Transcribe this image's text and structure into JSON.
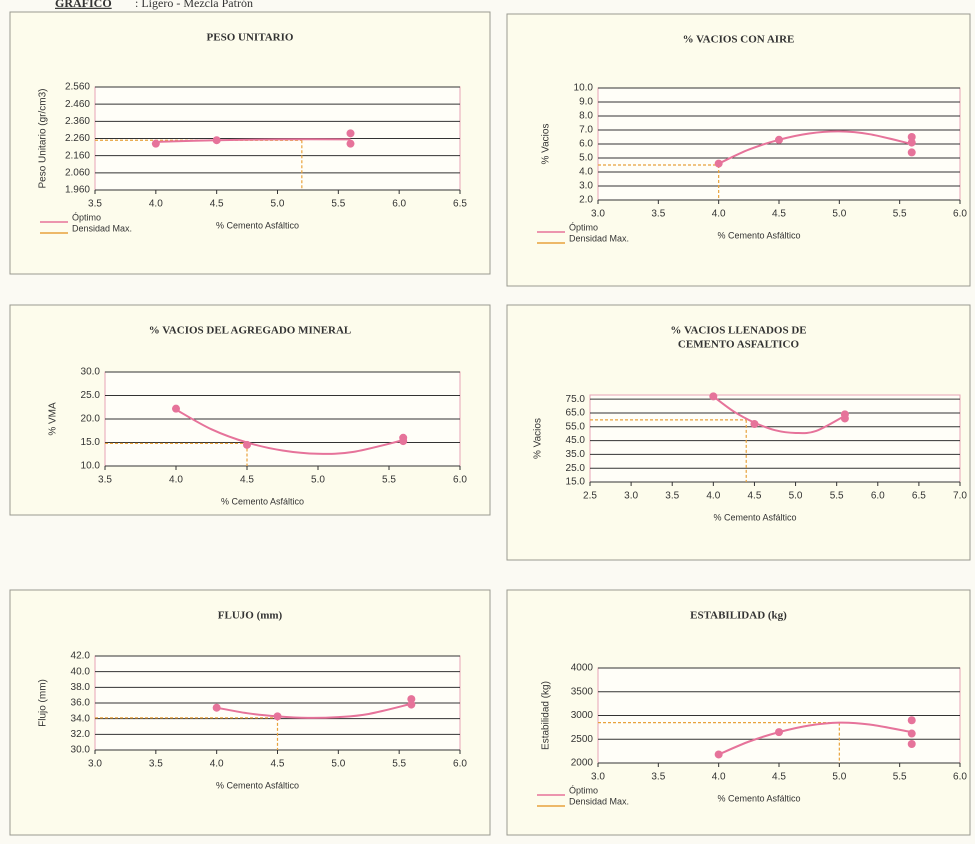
{
  "header": {
    "title": "GRAFICO",
    "subtitle": ": Ligero - Mezcla Patrón"
  },
  "chart_data": [
    {
      "type": "scatter",
      "title": [
        "PESO UNITARIO"
      ],
      "ylabel": "Peso Unitario (gr/cm3)",
      "xlabel": "% Cemento Asfáltico",
      "xlim": [
        3.5,
        6.5
      ],
      "xticks": [
        3.5,
        {
          "value": 4,
          "label": "4.0"
        },
        4.5,
        {
          "value": 5,
          "label": "5.0"
        },
        5.5,
        {
          "value": 6,
          "label": "6.0"
        },
        6.5
      ],
      "ylim": [
        1.96,
        2.56
      ],
      "yticks": [
        {
          "value": 1.96,
          "label": "1.960"
        },
        {
          "value": 2.06,
          "label": "2.060"
        },
        {
          "value": 2.16,
          "label": "2.160"
        },
        {
          "value": 2.26,
          "label": "2.260"
        },
        {
          "value": 2.36,
          "label": "2.360"
        },
        {
          "value": 2.46,
          "label": "2.460"
        },
        {
          "value": 2.56,
          "label": "2.560"
        }
      ],
      "points": {
        "x": [
          4.0,
          4.5,
          5.6,
          5.6
        ],
        "y": [
          2.23,
          2.25,
          2.29,
          2.23
        ]
      },
      "curve": {
        "x": [
          4.0,
          4.5,
          5.0,
          5.6
        ],
        "y": [
          2.24,
          2.25,
          2.255,
          2.255
        ]
      },
      "optimum": {
        "x": 5.2,
        "y": 2.25
      },
      "color": "#e6739a",
      "optimum_color": "#e8a23c",
      "legend": [
        {
          "label": "Óptimo",
          "color": "#e6739a"
        },
        {
          "label": "Densidad Max.",
          "color": "#e8a23c"
        }
      ]
    },
    {
      "type": "scatter",
      "title": [
        "% VACIOS CON AIRE"
      ],
      "ylabel": "% Vacios",
      "xlabel": "% Cemento Asfáltico",
      "xlim": [
        3,
        6
      ],
      "xticks": [
        {
          "value": 3,
          "label": "3.0"
        },
        3.5,
        {
          "value": 4,
          "label": "4.0"
        },
        4.5,
        {
          "value": 5,
          "label": "5.0"
        },
        5.5,
        {
          "value": 6,
          "label": "6.0"
        }
      ],
      "ylim": [
        2,
        10
      ],
      "yticks": [
        {
          "value": 2,
          "label": "2.0"
        },
        {
          "value": 3,
          "label": "3.0"
        },
        {
          "value": 4,
          "label": "4.0"
        },
        {
          "value": 5,
          "label": "5.0"
        },
        {
          "value": 6,
          "label": "6.0"
        },
        {
          "value": 7,
          "label": "7.0"
        },
        {
          "value": 8,
          "label": "8.0"
        },
        {
          "value": 9,
          "label": "9.0"
        },
        {
          "value": 10,
          "label": "10.0"
        }
      ],
      "points": {
        "x": [
          4.0,
          4.5,
          5.6,
          5.6,
          5.6
        ],
        "y": [
          4.6,
          6.3,
          6.5,
          6.1,
          5.4
        ]
      },
      "curve": {
        "x": [
          4.0,
          4.25,
          4.5,
          4.75,
          5.0,
          5.25,
          5.6
        ],
        "y": [
          4.6,
          5.6,
          6.3,
          6.75,
          6.9,
          6.7,
          6.0
        ]
      },
      "optimum": {
        "x": 4.0,
        "y": 4.5
      },
      "color": "#e6739a",
      "optimum_color": "#e8a23c",
      "legend": [
        {
          "label": "Óptimo",
          "color": "#e6739a"
        },
        {
          "label": "Densidad Max.",
          "color": "#e8a23c"
        }
      ]
    },
    {
      "type": "scatter",
      "title": [
        "% VACIOS DEL AGREGADO MINERAL"
      ],
      "ylabel": "% VMA",
      "xlabel": "% Cemento Asfáltico",
      "xlim": [
        3.5,
        6
      ],
      "xticks": [
        3.5,
        {
          "value": 4,
          "label": "4.0"
        },
        4.5,
        {
          "value": 5,
          "label": "5.0"
        },
        5.5,
        {
          "value": 6,
          "label": "6.0"
        }
      ],
      "ylim": [
        10,
        30
      ],
      "yticks": [
        {
          "value": 10,
          "label": "10.0"
        },
        {
          "value": 15,
          "label": "15.0"
        },
        {
          "value": 20,
          "label": "20.0"
        },
        {
          "value": 25,
          "label": "25.0"
        },
        {
          "value": 30,
          "label": "30.0"
        }
      ],
      "points": {
        "x": [
          4.0,
          4.5,
          5.6,
          5.6
        ],
        "y": [
          22.2,
          14.5,
          16.0,
          15.3
        ]
      },
      "curve": {
        "x": [
          4.0,
          4.25,
          4.5,
          4.75,
          5.0,
          5.25,
          5.6
        ],
        "y": [
          22.0,
          17.8,
          15.0,
          13.3,
          12.6,
          13.0,
          15.5
        ]
      },
      "optimum": {
        "x": 4.5,
        "y": 14.8
      },
      "color": "#e6739a",
      "optimum_color": "#e8a23c"
    },
    {
      "type": "scatter",
      "title": [
        "% VACIOS LLENADOS DE",
        "CEMENTO ASFALTICO"
      ],
      "ylabel": "% Vacios",
      "xlabel": "% Cemento Asfáltico",
      "xlim": [
        2.5,
        7
      ],
      "xticks": [
        2.5,
        {
          "value": 3,
          "label": "3.0"
        },
        3.5,
        {
          "value": 4,
          "label": "4.0"
        },
        4.5,
        {
          "value": 5,
          "label": "5.0"
        },
        5.5,
        {
          "value": 6,
          "label": "6.0"
        },
        6.5,
        {
          "value": 7,
          "label": "7.0"
        }
      ],
      "ylim": [
        15,
        78
      ],
      "yticks": [
        {
          "value": 15,
          "label": "15.0"
        },
        {
          "value": 25,
          "label": "25.0"
        },
        {
          "value": 35,
          "label": "35.0"
        },
        {
          "value": 45,
          "label": "45.0"
        },
        {
          "value": 55,
          "label": "55.0"
        },
        {
          "value": 65,
          "label": "65.0"
        },
        {
          "value": 75,
          "label": "75.0"
        }
      ],
      "points": {
        "x": [
          4.0,
          4.5,
          5.6,
          5.6
        ],
        "y": [
          77,
          57,
          64,
          61
        ]
      },
      "curve": {
        "x": [
          4.0,
          4.25,
          4.5,
          4.75,
          5.0,
          5.25,
          5.6
        ],
        "y": [
          77,
          66,
          58,
          52.5,
          50.5,
          52,
          63
        ]
      },
      "optimum": {
        "x": 4.4,
        "y": 60
      },
      "color": "#e6739a",
      "optimum_color": "#e8a23c"
    },
    {
      "type": "scatter",
      "title": [
        "FLUJO (mm)"
      ],
      "ylabel": "Flujo (mm)",
      "xlabel": "% Cemento Asfáltico",
      "xlim": [
        3,
        6
      ],
      "xticks": [
        {
          "value": 3,
          "label": "3.0"
        },
        3.5,
        {
          "value": 4,
          "label": "4.0"
        },
        4.5,
        {
          "value": 5,
          "label": "5.0"
        },
        5.5,
        {
          "value": 6,
          "label": "6.0"
        }
      ],
      "ylim": [
        30,
        42
      ],
      "yticks": [
        {
          "value": 30,
          "label": "30.0"
        },
        {
          "value": 32,
          "label": "32.0"
        },
        {
          "value": 34,
          "label": "34.0"
        },
        {
          "value": 36,
          "label": "36.0"
        },
        {
          "value": 38,
          "label": "38.0"
        },
        {
          "value": 40,
          "label": "40.0"
        },
        {
          "value": 42,
          "label": "42.0"
        }
      ],
      "points": {
        "x": [
          4.0,
          4.5,
          5.6,
          5.6
        ],
        "y": [
          35.4,
          34.3,
          36.5,
          35.8
        ]
      },
      "curve": {
        "x": [
          4.0,
          4.25,
          4.5,
          4.75,
          5.0,
          5.25,
          5.6
        ],
        "y": [
          35.4,
          34.7,
          34.3,
          34.1,
          34.2,
          34.6,
          35.9
        ]
      },
      "optimum": {
        "x": 4.5,
        "y": 34.1
      },
      "color": "#e6739a",
      "optimum_color": "#e8a23c"
    },
    {
      "type": "scatter",
      "title": [
        "ESTABILIDAD (kg)"
      ],
      "ylabel": "Estabilidad (kg)",
      "xlabel": "% Cemento Asfáltico",
      "xlim": [
        3,
        6
      ],
      "xticks": [
        {
          "value": 3,
          "label": "3.0"
        },
        3.5,
        {
          "value": 4,
          "label": "4.0"
        },
        4.5,
        {
          "value": 5,
          "label": "5.0"
        },
        5.5,
        {
          "value": 6,
          "label": "6.0"
        }
      ],
      "ylim": [
        2000,
        4000
      ],
      "yticks": [
        2000,
        2500,
        3000,
        3500,
        4000
      ],
      "points": {
        "x": [
          4.0,
          4.5,
          5.6,
          5.6,
          5.6
        ],
        "y": [
          2180,
          2650,
          2900,
          2620,
          2400
        ]
      },
      "curve": {
        "x": [
          4.0,
          4.25,
          4.5,
          4.75,
          5.0,
          5.25,
          5.6
        ],
        "y": [
          2180,
          2450,
          2650,
          2790,
          2850,
          2810,
          2650
        ]
      },
      "optimum": {
        "x": 5.0,
        "y": 2850
      },
      "color": "#e6739a",
      "optimum_color": "#e8a23c",
      "legend": [
        {
          "label": "Óptimo",
          "color": "#e6739a"
        },
        {
          "label": "Densidad Max.",
          "color": "#e8a23c"
        }
      ]
    }
  ]
}
